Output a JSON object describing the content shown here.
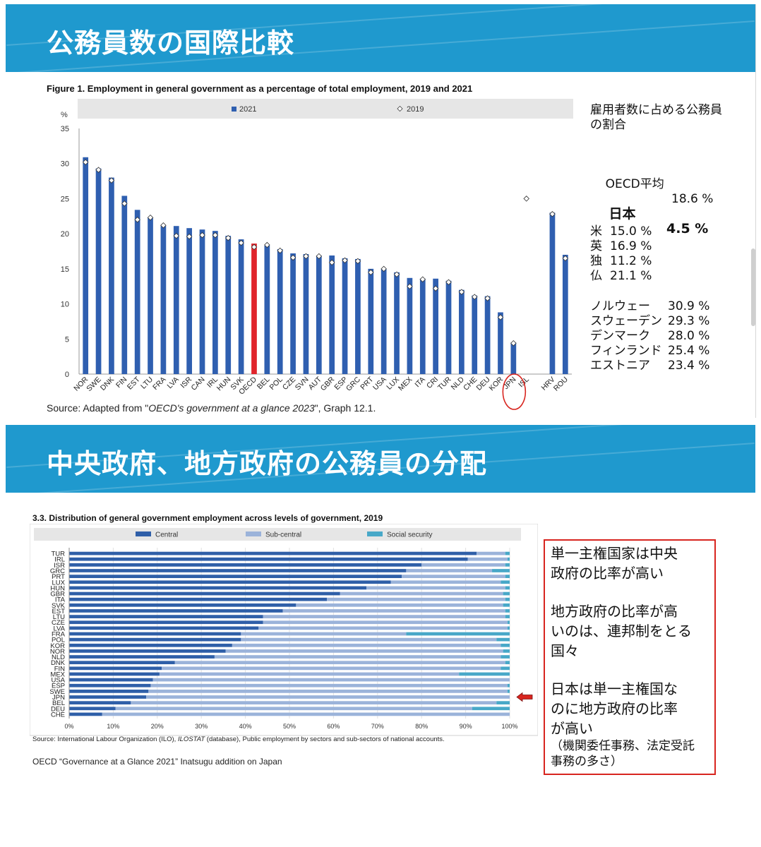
{
  "slide1": {
    "banner_title": "公務員数の国際比較",
    "figure_title": "Figure 1. Employment in general government as a percentage of total employment, 2019 and 2021",
    "source_prefix": "Source: Adapted from \"",
    "source_italic": "OECD's government at a glance 2023",
    "source_suffix": "\", Graph 12.1.",
    "side": {
      "heading_line1": "雇用者数に占める公務員",
      "heading_line2": "の割合",
      "oecd_label": "OECD平均",
      "oecd_value": "18.6 %",
      "japan_label": "日本",
      "japan_value": "4.5 %",
      "group1": [
        {
          "label": "米",
          "value": "15.0 %"
        },
        {
          "label": "英",
          "value": "16.9 %"
        },
        {
          "label": "独",
          "value": "11.2 %"
        },
        {
          "label": "仏",
          "value": "21.1 %"
        }
      ],
      "group2": [
        {
          "label": "ノルウェー",
          "value": "30.9 %"
        },
        {
          "label": "スウェーデン",
          "value": "29.3 %"
        },
        {
          "label": "デンマーク",
          "value": "28.0 %"
        },
        {
          "label": "フィンランド",
          "value": "25.4 %"
        },
        {
          "label": "エストニア",
          "value": "23.4 %"
        }
      ]
    }
  },
  "slide2": {
    "banner_title": "中央政府、地方政府の公務員の分配",
    "figure_title": "3.3. Distribution of general government employment across levels of government, 2019",
    "source_part1": "Source: International Labour Organization (ILO), ",
    "source_italic": "ILOSTAT",
    "source_part2": " (database), Public employment by sectors and sub-sectors of national accounts.",
    "footer": "OECD “Governance at a Glance 2021”  Inatsugu addition on Japan",
    "note": {
      "p1": "単一主権国家は中央\n政府の比率が高い",
      "p2": "地方政府の比率が高\nいのは、連邦制をとる\n国々",
      "p3": "日本は単一主権国な\nのに地方政府の比率\nが高い",
      "p4": "（機関委任事務、法定受託\n事務の多さ）"
    }
  },
  "chart_data": [
    {
      "type": "bar",
      "title": "Figure 1. Employment in general government as a percentage of total employment, 2019 and 2021",
      "ylabel": "%",
      "ylim": [
        0,
        35
      ],
      "yticks": [
        0,
        5,
        10,
        15,
        20,
        25,
        30,
        35
      ],
      "grid": false,
      "legend": "top",
      "categories": [
        "NOR",
        "SWE",
        "DNK",
        "FIN",
        "EST",
        "LTU",
        "FRA",
        "LVA",
        "ISR",
        "CAN",
        "IRL",
        "HUN",
        "SVK",
        "OECD",
        "BEL",
        "POL",
        "CZE",
        "SVN",
        "AUT",
        "GBR",
        "ESP",
        "GRC",
        "PRT",
        "USA",
        "LUX",
        "MEX",
        "ITA",
        "CRI",
        "TUR",
        "NLD",
        "CHE",
        "DEU",
        "KOR",
        "JPN",
        "ISL",
        "",
        "HRV",
        "ROU"
      ],
      "highlight": "OECD",
      "series": [
        {
          "name": "2021",
          "marker": "bar",
          "color": "#2f5fb0",
          "values": [
            30.9,
            29.3,
            28.0,
            25.4,
            23.4,
            22.3,
            21.1,
            21.1,
            20.8,
            20.6,
            20.4,
            19.7,
            19.2,
            18.6,
            18.3,
            17.8,
            17.2,
            17.1,
            16.9,
            16.9,
            16.5,
            16.4,
            15.0,
            15.0,
            14.5,
            13.7,
            13.6,
            13.6,
            13.3,
            12.0,
            11.2,
            11.1,
            8.8,
            4.5,
            null,
            null,
            23.0,
            17.0
          ]
        },
        {
          "name": "2019",
          "marker": "diamond",
          "color": "#ffffff",
          "values": [
            30.2,
            29.1,
            27.6,
            24.3,
            22.0,
            22.3,
            21.2,
            19.7,
            19.6,
            19.8,
            19.8,
            19.4,
            18.7,
            18.1,
            18.4,
            17.6,
            16.6,
            16.8,
            16.8,
            15.9,
            16.2,
            16.1,
            14.5,
            15.0,
            14.2,
            12.5,
            13.5,
            12.2,
            13.1,
            11.7,
            11.0,
            10.8,
            8.1,
            4.4,
            25.0,
            null,
            22.8,
            16.5
          ]
        }
      ]
    },
    {
      "type": "bar",
      "orientation": "horizontal",
      "stacked": true,
      "title": "3.3. Distribution of general government employment across levels of government, 2019",
      "xlim": [
        0,
        100
      ],
      "xticks": [
        "0%",
        "10%",
        "20%",
        "30%",
        "40%",
        "50%",
        "60%",
        "70%",
        "80%",
        "90%",
        "100%"
      ],
      "legend": "top",
      "categories": [
        "TUR",
        "IRL",
        "ISR",
        "GRC",
        "PRT",
        "LUX",
        "HUN",
        "GBR",
        "ITA",
        "SVK",
        "EST",
        "LTU",
        "CZE",
        "LVA",
        "FRA",
        "POL",
        "KOR",
        "NOR",
        "NLD",
        "DNK",
        "FIN",
        "MEX",
        "USA",
        "ESP",
        "SWE",
        "JPN",
        "BEL",
        "DEU",
        "CHE"
      ],
      "highlight": "JPN",
      "series": [
        {
          "name": "Central",
          "color": "#2f5fa8",
          "values": [
            92.5,
            90.5,
            80,
            76.5,
            75.5,
            73,
            67.5,
            61.5,
            58.5,
            51.5,
            48.5,
            44,
            44,
            43,
            39,
            39,
            37,
            35.5,
            33,
            24,
            21,
            20.5,
            19,
            18.5,
            18,
            17.5,
            14,
            10.5,
            7.5
          ]
        },
        {
          "name": "Sub-central",
          "color": "#9bb3da",
          "values": [
            6.5,
            9,
            19,
            19.5,
            23.5,
            25,
            31.5,
            37,
            40.5,
            47,
            50.5,
            55,
            55.5,
            56.5,
            37.5,
            58,
            61,
            63,
            65,
            75,
            77,
            68,
            81,
            81,
            81.5,
            82.5,
            83,
            81,
            92.5
          ]
        },
        {
          "name": "Social security",
          "color": "#48a8c8",
          "values": [
            1,
            0.5,
            1,
            4,
            1,
            2,
            1,
            1.5,
            1,
            1.5,
            1,
            1,
            0.5,
            0.5,
            23.5,
            3,
            2,
            1.5,
            2,
            1,
            2,
            11.5,
            0,
            0.5,
            0.5,
            0,
            3,
            8.5,
            0
          ]
        }
      ]
    }
  ]
}
